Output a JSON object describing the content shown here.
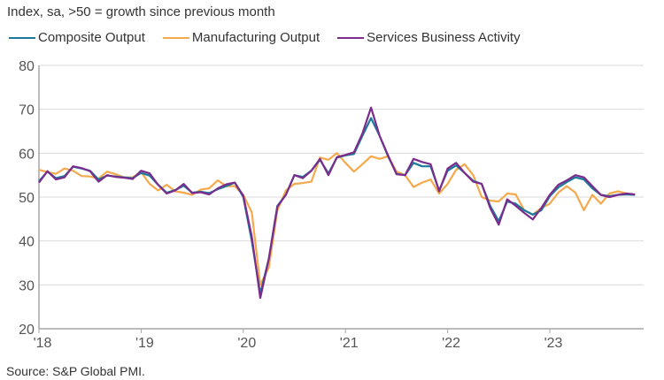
{
  "chart_data": {
    "type": "line",
    "title": "",
    "subtitle": "Index, sa, >50 = growth since previous month",
    "source": "Source: S&P Global PMI.",
    "xlabel": "",
    "ylabel": "",
    "ylim": [
      20,
      80
    ],
    "yticks": [
      20,
      30,
      40,
      50,
      60,
      70,
      80
    ],
    "xticks": [
      "'18",
      "'19",
      "'20",
      "'21",
      "'22",
      "'23"
    ],
    "x_start": "2018-01",
    "x_frequency": "monthly",
    "grid": true,
    "legend_position": "top",
    "series": [
      {
        "name": "Composite Output",
        "color": "#1b7a99",
        "values": [
          53.6,
          55.8,
          54.3,
          54.8,
          56.9,
          56.5,
          56.0,
          54.0,
          54.9,
          54.7,
          54.5,
          54.3,
          55.5,
          54.9,
          52.8,
          51.0,
          51.6,
          52.6,
          51.0,
          51.2,
          50.9,
          51.8,
          52.5,
          53.3,
          50.0,
          40.0,
          28.0,
          36.0,
          48.0,
          50.5,
          55.0,
          54.6,
          56.0,
          58.5,
          55.4,
          59.0,
          59.5,
          59.8,
          64.0,
          68.0,
          64.0,
          59.3,
          55.3,
          55.0,
          57.8,
          57.0,
          57.0,
          51.5,
          56.0,
          57.2,
          55.5,
          53.7,
          53.0,
          48.0,
          44.5,
          49.0,
          48.5,
          47.0,
          46.0,
          47.0,
          50.2,
          52.2,
          53.4,
          54.5,
          54.0,
          52.0,
          50.5,
          50.2,
          50.5,
          50.6,
          50.5
        ]
      },
      {
        "name": "Manufacturing Output",
        "color": "#f5a94d",
        "values": [
          56.2,
          55.7,
          55.3,
          56.5,
          56.0,
          54.8,
          54.7,
          54.2,
          55.8,
          55.2,
          54.5,
          54.5,
          55.7,
          53.0,
          51.5,
          52.8,
          51.3,
          51.0,
          50.5,
          51.7,
          52.0,
          53.8,
          52.5,
          52.5,
          50.5,
          46.5,
          30.0,
          34.0,
          47.0,
          51.5,
          53.0,
          53.2,
          53.5,
          59.0,
          58.5,
          60.0,
          57.8,
          55.8,
          57.5,
          59.3,
          58.7,
          59.3,
          55.8,
          55.0,
          52.3,
          53.3,
          54.0,
          50.8,
          53.0,
          56.2,
          57.5,
          55.0,
          50.0,
          49.2,
          49.0,
          50.8,
          50.6,
          47.0,
          46.0,
          47.5,
          48.5,
          51.0,
          52.5,
          51.0,
          47.0,
          50.5,
          48.5,
          50.8,
          51.3,
          50.8,
          50.5
        ]
      },
      {
        "name": "Services Business Activity",
        "color": "#7b2c8c",
        "values": [
          53.3,
          55.9,
          54.0,
          54.5,
          57.0,
          56.6,
          55.9,
          53.5,
          55.0,
          54.6,
          54.4,
          54.1,
          56.0,
          55.4,
          52.8,
          50.8,
          51.5,
          53.0,
          50.9,
          51.1,
          50.6,
          52.0,
          52.9,
          53.3,
          50.3,
          41.0,
          27.0,
          36.0,
          47.8,
          50.5,
          55.0,
          54.3,
          56.0,
          58.7,
          55.0,
          59.1,
          59.6,
          60.2,
          64.5,
          70.4,
          64.0,
          59.5,
          55.2,
          55.0,
          58.7,
          58.0,
          57.5,
          51.3,
          56.5,
          57.8,
          55.5,
          53.5,
          53.0,
          47.5,
          43.7,
          49.5,
          48.0,
          46.4,
          44.9,
          47.5,
          50.5,
          52.8,
          53.8,
          55.0,
          54.5,
          52.5,
          50.5,
          50.0,
          50.5,
          50.8,
          50.6
        ]
      }
    ]
  }
}
